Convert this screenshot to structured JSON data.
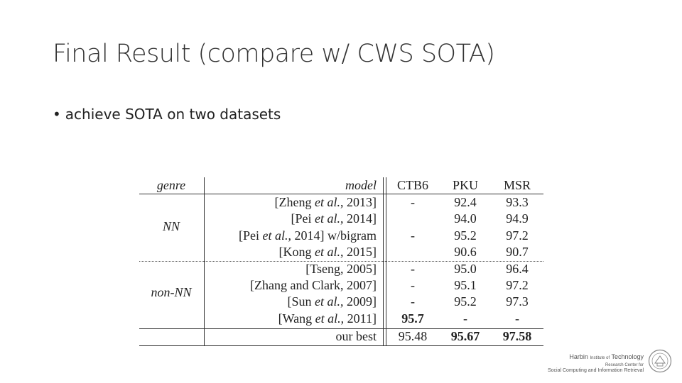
{
  "title": "Final Result (compare w/ CWS SOTA)",
  "bullet": "achieve SOTA on two datasets",
  "table": {
    "headers": {
      "genre": "genre",
      "model": "model",
      "c1": "CTB6",
      "c2": "PKU",
      "c3": "MSR"
    },
    "groups": [
      {
        "genre": "NN"
      },
      {
        "genre": "non-NN"
      }
    ],
    "rows": [
      {
        "pre": "[Zheng ",
        "em": "et al.",
        "post": ", 2013]",
        "c1": "-",
        "c2": "92.4",
        "c3": "93.3"
      },
      {
        "pre": "[Pei ",
        "em": "et al.",
        "post": ", 2014]",
        "c1": "",
        "c2": "94.0",
        "c3": "94.9"
      },
      {
        "pre": "[Pei ",
        "em": "et al.",
        "post": ", 2014] w/bigram",
        "c1": "-",
        "c2": "95.2",
        "c3": "97.2"
      },
      {
        "pre": "[Kong ",
        "em": "et al.",
        "post": ", 2015]",
        "c1": "",
        "c2": "90.6",
        "c3": "90.7"
      },
      {
        "pre": "[Tseng, 2005]",
        "em": "",
        "post": "",
        "c1": "-",
        "c2": "95.0",
        "c3": "96.4"
      },
      {
        "pre": "[Zhang and Clark, 2007]",
        "em": "",
        "post": "",
        "c1": "-",
        "c2": "95.1",
        "c3": "97.2"
      },
      {
        "pre": "[Sun ",
        "em": "et al.",
        "post": ", 2009]",
        "c1": "-",
        "c2": "95.2",
        "c3": "97.3"
      },
      {
        "pre": "[Wang ",
        "em": "et al.",
        "post": ", 2011]",
        "c1": "95.7",
        "c2": "-",
        "c3": "-"
      }
    ],
    "best": {
      "model": "our best",
      "c1": "95.48",
      "c2": "95.67",
      "c3": "97.58"
    }
  },
  "footer": {
    "line1a": "Harbin ",
    "line1b": "Institute of",
    "line1c": " Technology",
    "line2": "Research Center for",
    "line3": "Social Computing and Information Retrieval"
  }
}
